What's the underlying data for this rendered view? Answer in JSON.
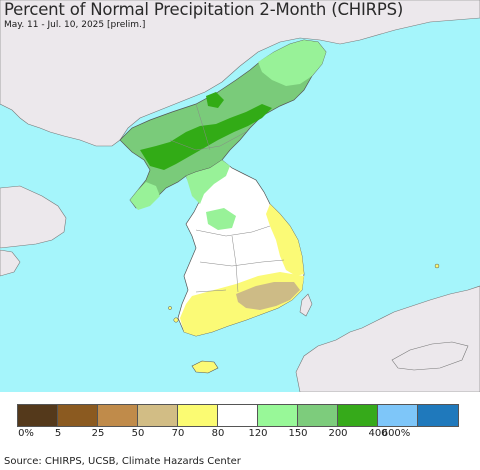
{
  "title": "Percent of Normal Precipitation 2-Month (CHIRPS)",
  "subtitle": "May. 11 - Jul. 10, 2025 [prelim.]",
  "footer": "Source: CHIRPS, UCSB, Climate Hazards Center",
  "colors": {
    "ocean": "#a5f5fb",
    "land_outside": "#ece8ec",
    "north_green": "#7acb7a",
    "dark_green": "#32ab16",
    "light_green": "#98f298",
    "white": "#ffffff",
    "yellow": "#fbfa76",
    "tan": "#cdbb86",
    "border": "#555555"
  },
  "legend": {
    "swatches": [
      {
        "color": "#54391b"
      },
      {
        "color": "#8b5a20"
      },
      {
        "color": "#c08b4a"
      },
      {
        "color": "#d2bd85"
      },
      {
        "color": "#fbfb72"
      },
      {
        "color": "#ffffff"
      },
      {
        "color": "#98f898"
      },
      {
        "color": "#7dcc7c"
      },
      {
        "color": "#36aa1a"
      },
      {
        "color": "#7ec6f9"
      },
      {
        "color": "#1f79bc"
      }
    ],
    "labels": [
      "0%",
      "5",
      "25",
      "50",
      "70",
      "80",
      "120",
      "150",
      "200",
      "400",
      "600%"
    ]
  }
}
